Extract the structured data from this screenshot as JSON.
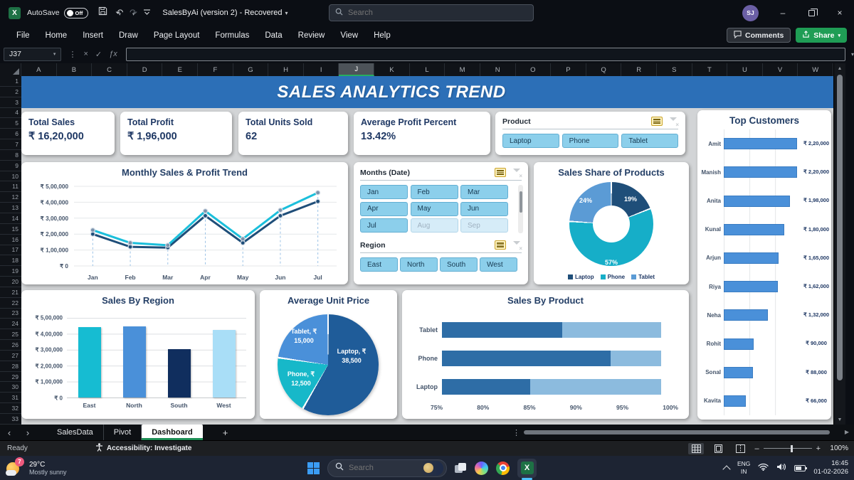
{
  "titlebar": {
    "autosave_label": "AutoSave",
    "autosave_state": "Off",
    "doc_title": "SalesByAi (version 2)  -  Recovered",
    "search_placeholder": "Search",
    "avatar_initials": "SJ"
  },
  "ribbon": {
    "tabs": [
      "File",
      "Home",
      "Insert",
      "Draw",
      "Page Layout",
      "Formulas",
      "Data",
      "Review",
      "View",
      "Help"
    ],
    "comments_label": "Comments",
    "share_label": "Share"
  },
  "formula_bar": {
    "name_box_value": "J37",
    "fx_label": "ƒx"
  },
  "grid": {
    "columns": [
      "A",
      "B",
      "C",
      "D",
      "E",
      "F",
      "G",
      "H",
      "I",
      "J",
      "K",
      "L",
      "M",
      "N",
      "O",
      "P",
      "Q",
      "R",
      "S",
      "T",
      "U",
      "V",
      "W"
    ],
    "selected_column": "J",
    "row_start": 1,
    "row_end": 33
  },
  "dashboard": {
    "banner_title": "SALES ANALYTICS TREND",
    "kpis": [
      {
        "label": "Total Sales",
        "value": "₹ 16,20,000"
      },
      {
        "label": "Total Profit",
        "value": "₹ 1,96,000"
      },
      {
        "label": "Total Units Sold",
        "value": "62"
      },
      {
        "label": "Average Profit Percent",
        "value": "13.42%"
      }
    ],
    "slicers": {
      "product": {
        "title": "Product",
        "items": [
          {
            "label": "Laptop",
            "state": "on"
          },
          {
            "label": "Phone",
            "state": "on"
          },
          {
            "label": "Tablet",
            "state": "on"
          }
        ]
      },
      "months": {
        "title": "Months (Date)",
        "items": [
          {
            "label": "Jan",
            "state": "on"
          },
          {
            "label": "Feb",
            "state": "on"
          },
          {
            "label": "Mar",
            "state": "on"
          },
          {
            "label": "Apr",
            "state": "on"
          },
          {
            "label": "May",
            "state": "on"
          },
          {
            "label": "Jun",
            "state": "on"
          },
          {
            "label": "Jul",
            "state": "on"
          },
          {
            "label": "Aug",
            "state": "off"
          },
          {
            "label": "Sep",
            "state": "off"
          }
        ]
      },
      "region": {
        "title": "Region",
        "items": [
          {
            "label": "East",
            "state": "on"
          },
          {
            "label": "North",
            "state": "on"
          },
          {
            "label": "South",
            "state": "on"
          },
          {
            "label": "West",
            "state": "on"
          }
        ]
      }
    }
  },
  "chart_data": [
    {
      "id": "top_customers",
      "type": "bar",
      "orientation": "horizontal",
      "title": "Top Customers",
      "categories": [
        "Amit",
        "Manish",
        "Anita",
        "Kunal",
        "Arjun",
        "Riya",
        "Neha",
        "Rohit",
        "Sonal",
        "Kavita"
      ],
      "values": [
        220000,
        220000,
        198000,
        180000,
        165000,
        162000,
        132000,
        90000,
        88000,
        66000
      ],
      "labels": [
        "₹ 2,20,000",
        "₹ 2,20,000",
        "₹ 1,98,000",
        "₹ 1,80,000",
        "₹ 1,65,000",
        "₹ 1,62,000",
        "₹ 1,32,000",
        "₹ 90,000",
        "₹ 88,000",
        "₹ 66,000"
      ],
      "xlim": [
        0,
        230000
      ],
      "bar_color": "#4a90d9"
    },
    {
      "id": "monthly_trend",
      "type": "line",
      "title": "Monthly Sales & Profit Trend",
      "x": [
        "Jan",
        "Feb",
        "Mar",
        "Apr",
        "May",
        "Jun",
        "Jul"
      ],
      "series": [
        {
          "name": "Sales",
          "color": "#1bbfdb",
          "marker": "#7b93ac",
          "values": [
            225000,
            145000,
            130000,
            345000,
            170000,
            350000,
            460000
          ]
        },
        {
          "name": "Profit",
          "color": "#1f4e79",
          "marker": "#1f4e79",
          "values": [
            200000,
            120000,
            115000,
            315000,
            145000,
            315000,
            405000
          ]
        }
      ],
      "ylim": [
        0,
        500000
      ],
      "ytick_labels": [
        "₹ 0",
        "₹ 1,00,000",
        "₹ 2,00,000",
        "₹ 3,00,000",
        "₹ 4,00,000",
        "₹ 5,00,000"
      ]
    },
    {
      "id": "sales_share",
      "type": "pie",
      "subtype": "donut",
      "title": "Sales Share of Products",
      "labels": [
        "Laptop",
        "Phone",
        "Tablet"
      ],
      "values_pct": [
        19,
        57,
        24
      ],
      "pct_labels": [
        "19%",
        "57%",
        "24%"
      ],
      "colors": [
        "#1f4e79",
        "#16aec8",
        "#5b9bd5"
      ],
      "legend": [
        "Laptop",
        "Phone",
        "Tablet"
      ],
      "legend_position": "bottom"
    },
    {
      "id": "sales_by_region",
      "type": "bar",
      "title": "Sales By Region",
      "categories": [
        "East",
        "North",
        "South",
        "West"
      ],
      "values": [
        440000,
        445000,
        305000,
        425000
      ],
      "colors": [
        "#16bcd2",
        "#4a90d9",
        "#102e5e",
        "#a9def7"
      ],
      "ylim": [
        0,
        500000
      ],
      "ytick_labels": [
        "₹ 0",
        "₹ 1,00,000",
        "₹ 2,00,000",
        "₹ 3,00,000",
        "₹ 4,00,000",
        "₹ 5,00,000"
      ]
    },
    {
      "id": "avg_unit_price",
      "type": "pie",
      "title": "Average Unit Price",
      "labels": [
        "Laptop",
        "Phone",
        "Tablet"
      ],
      "values": [
        38500,
        12500,
        15000
      ],
      "colors": [
        "#1f5c99",
        "#17b8c9",
        "#4a90d9"
      ],
      "slice_labels": [
        {
          "l1": "Laptop, ₹",
          "l2": "38,500"
        },
        {
          "l1": "Phone, ₹",
          "l2": "12,500"
        },
        {
          "l1": "Tablet, ₹",
          "l2": "15,000"
        }
      ]
    },
    {
      "id": "sales_by_product",
      "type": "bar",
      "subtype": "stacked-horizontal",
      "title": "Sales By Product",
      "categories": [
        "Tablet",
        "Phone",
        "Laptop"
      ],
      "dark_end_pct": [
        88.7,
        94.2,
        85.1
      ],
      "series_colors": {
        "dark": "#2e6da6",
        "light": "#8cbbde"
      },
      "xlim": [
        75,
        100
      ],
      "xtick_labels": [
        "75%",
        "80%",
        "85%",
        "90%",
        "95%",
        "100%"
      ]
    }
  ],
  "sheet_bar": {
    "tabs": [
      {
        "label": "SalesData",
        "active": false
      },
      {
        "label": "Pivot",
        "active": false
      },
      {
        "label": "Dashboard",
        "active": true
      }
    ],
    "add_label": "+"
  },
  "status_bar": {
    "mode": "Ready",
    "accessibility": "Accessibility: Investigate",
    "zoom_level": "100%"
  },
  "taskbar": {
    "weather_temp": "29°C",
    "weather_desc": "Mostly sunny",
    "weather_badge": "7",
    "search_placeholder": "Search",
    "lang_line1": "ENG",
    "lang_line2": "IN",
    "time": "16:45",
    "date": "01-02-2026"
  },
  "icons": {
    "undo": "↶",
    "redo": "↷",
    "dropdown": "▾",
    "kebab": "⋮",
    "close": "×",
    "minimize": "–",
    "cancel": "×",
    "check": "✓",
    "sheet_prev": "‹",
    "sheet_next": "›",
    "scroll_up": "▲",
    "scroll_down": "▼",
    "scroll_right": "▶",
    "zoom_out": "–",
    "zoom_in": "+"
  }
}
